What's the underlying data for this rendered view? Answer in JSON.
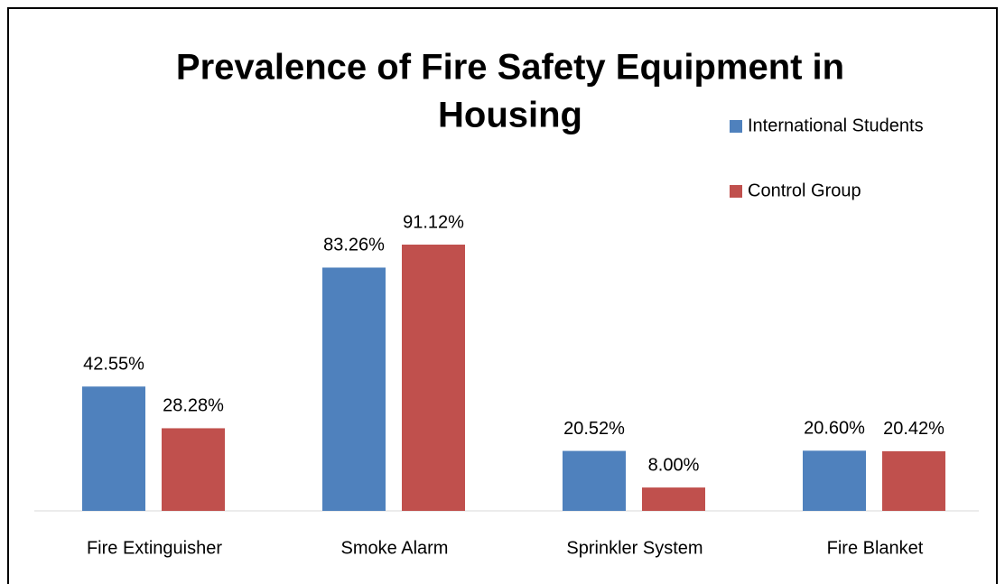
{
  "chart_data": {
    "type": "bar",
    "title": [
      "Prevalence of Fire Safety Equipment in",
      "Housing"
    ],
    "categories": [
      "Fire Extinguisher",
      "Smoke Alarm",
      "Sprinkler System",
      "Fire Blanket"
    ],
    "series": [
      {
        "name": "International Students",
        "color": "#4f81bd",
        "values": [
          42.55,
          83.26,
          20.52,
          20.6
        ],
        "value_labels": [
          "42.55%",
          "83.26%",
          "20.52%",
          "20.60%"
        ]
      },
      {
        "name": "Control Group",
        "color": "#c0504d",
        "values": [
          28.28,
          91.12,
          8,
          20.42
        ],
        "value_labels": [
          "28.28%",
          "91.12%",
          "8.00%",
          "20.42%"
        ]
      }
    ]
  }
}
